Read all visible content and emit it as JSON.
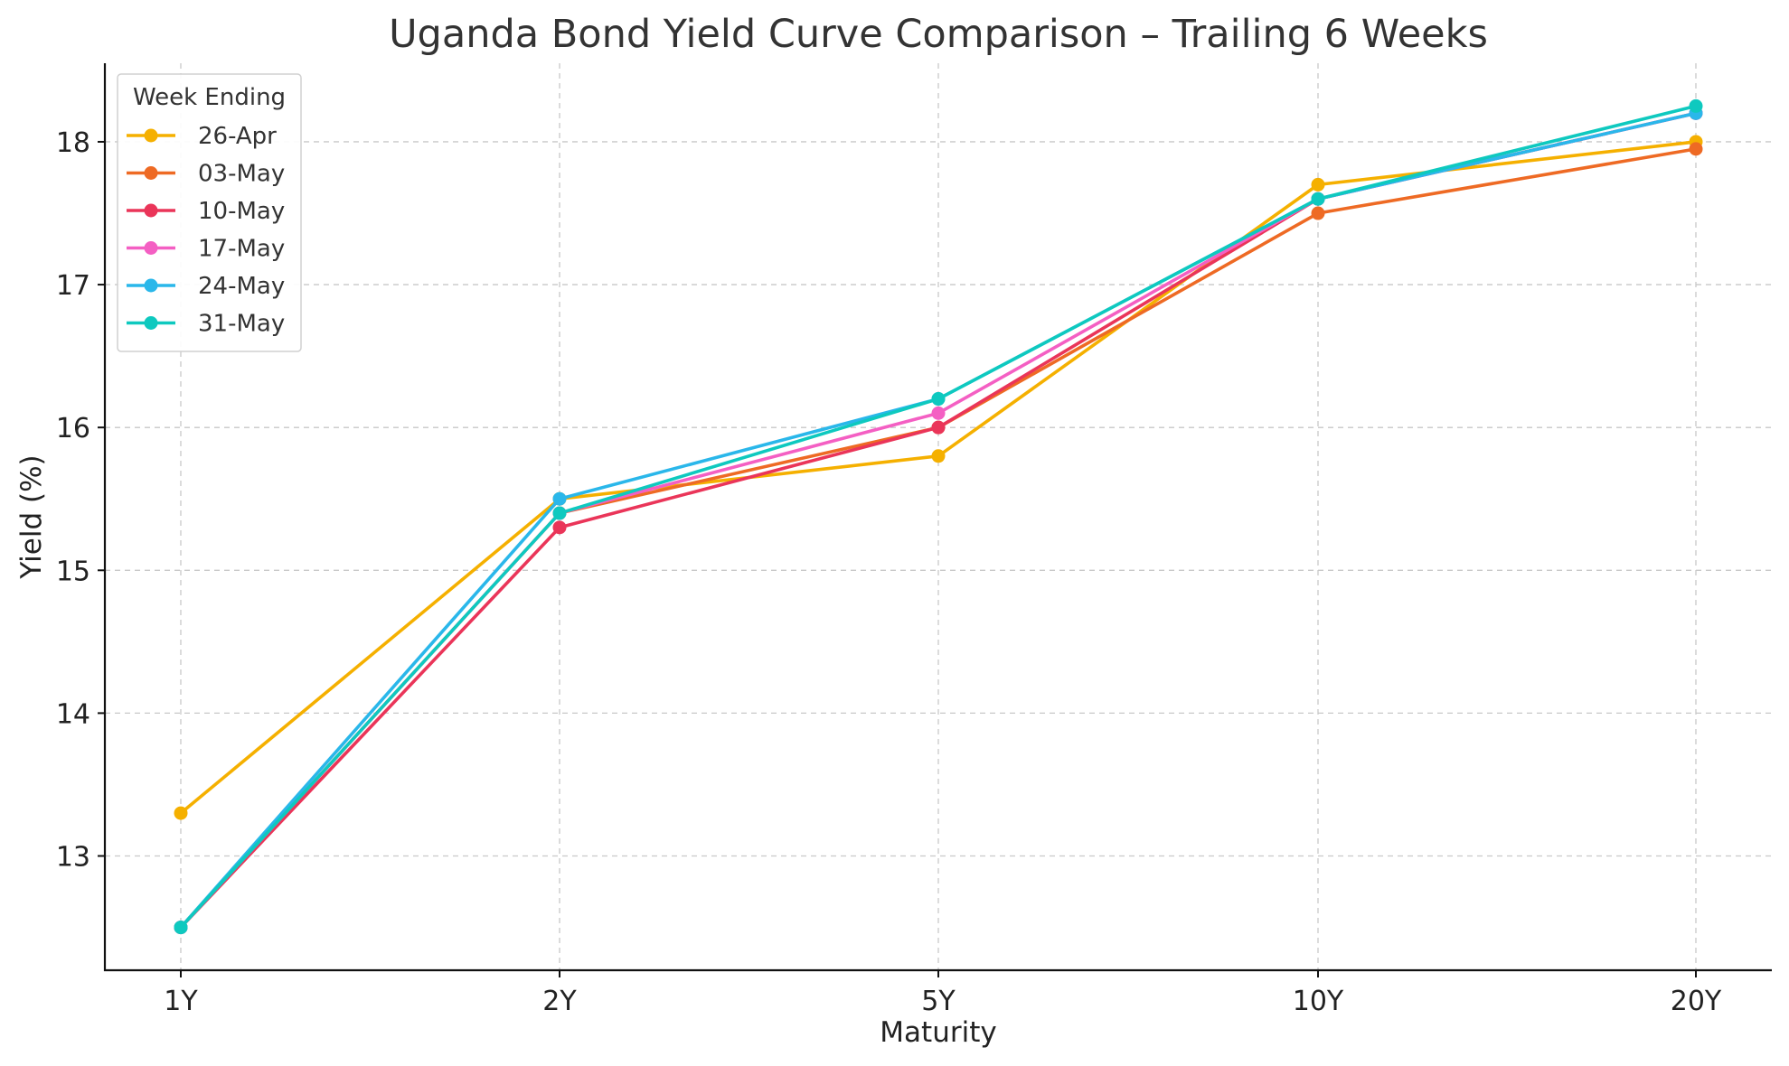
{
  "chart_data": {
    "type": "line",
    "title": "Uganda Bond Yield Curve Comparison – Trailing 6 Weeks",
    "xlabel": "Maturity",
    "ylabel": "Yield (%)",
    "categories": [
      "1Y",
      "2Y",
      "5Y",
      "10Y",
      "20Y"
    ],
    "yticks": [
      13,
      14,
      15,
      16,
      17,
      18
    ],
    "ylim": [
      12.2,
      18.55
    ],
    "grid": true,
    "legend": {
      "title": "Week Ending",
      "placement": "top-left"
    },
    "series": [
      {
        "name": "26-Apr",
        "color": "#f5b000",
        "values": [
          13.3,
          15.5,
          15.8,
          17.7,
          18.0
        ]
      },
      {
        "name": "03-May",
        "color": "#ee6a24",
        "values": [
          12.5,
          15.4,
          16.0,
          17.5,
          17.95
        ]
      },
      {
        "name": "10-May",
        "color": "#ea3559",
        "values": [
          12.5,
          15.3,
          16.0,
          17.6,
          18.2
        ]
      },
      {
        "name": "17-May",
        "color": "#f45fc3",
        "values": [
          12.5,
          15.4,
          16.1,
          17.6,
          18.2
        ]
      },
      {
        "name": "24-May",
        "color": "#2ab7ea",
        "values": [
          12.5,
          15.5,
          16.2,
          17.6,
          18.2
        ]
      },
      {
        "name": "31-May",
        "color": "#0ec9bf",
        "values": [
          12.5,
          15.4,
          16.2,
          17.6,
          18.25
        ]
      }
    ]
  }
}
